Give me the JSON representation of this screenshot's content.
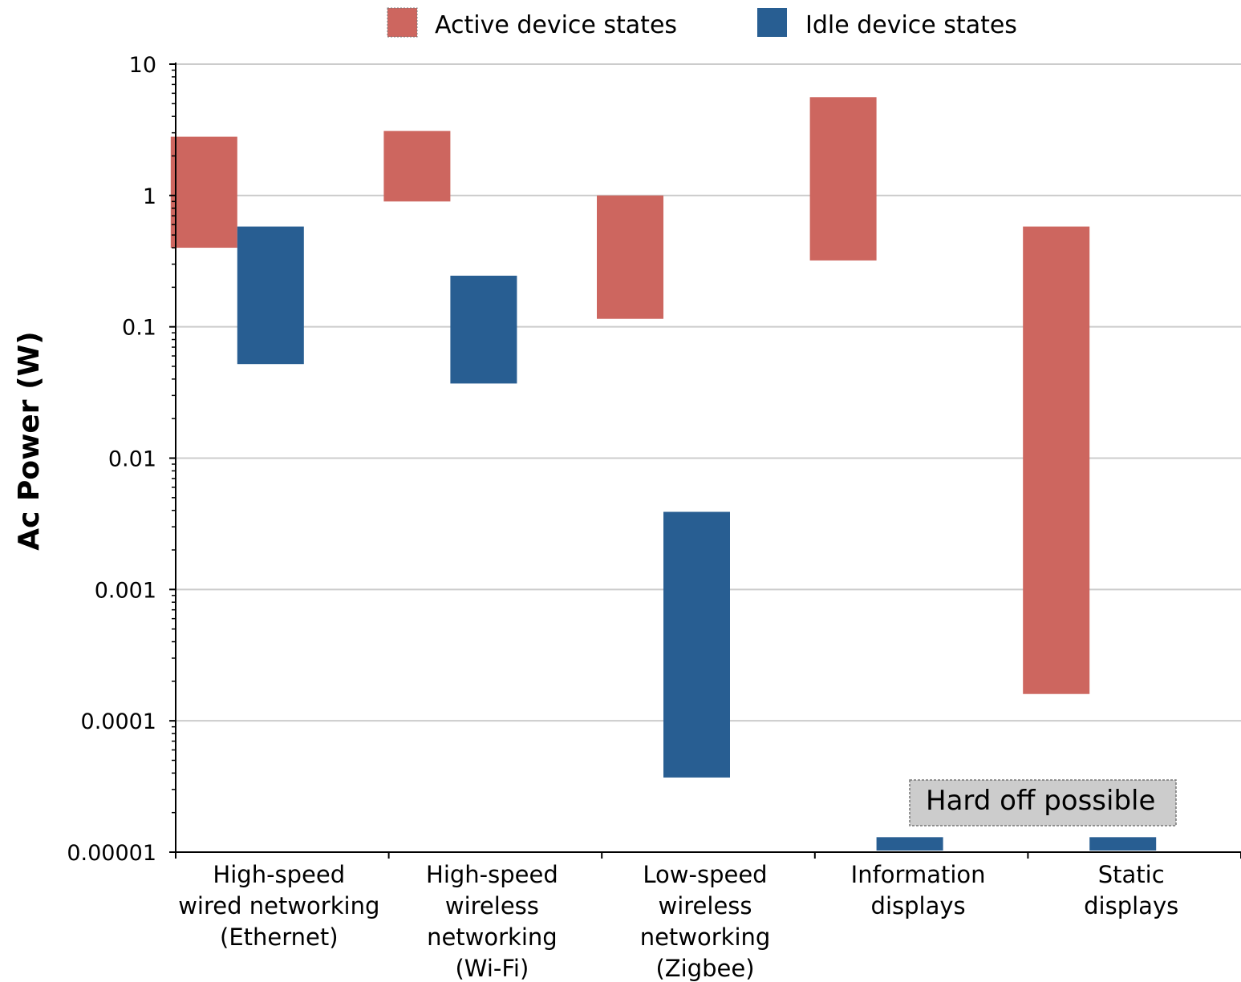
{
  "chart_data": {
    "type": "floating-bar",
    "title": "",
    "xlabel": "",
    "ylabel": "Ac Power (W)",
    "yscale": "log",
    "ylim": [
      1e-05,
      10
    ],
    "yticks": [
      {
        "value": 10,
        "label": "10"
      },
      {
        "value": 1,
        "label": "1"
      },
      {
        "value": 0.1,
        "label": "0.1"
      },
      {
        "value": 0.01,
        "label": "0.01"
      },
      {
        "value": 0.001,
        "label": "0.001"
      },
      {
        "value": 0.0001,
        "label": "0.0001"
      },
      {
        "value": 1e-05,
        "label": "0.00001"
      }
    ],
    "grid": "horizontal",
    "legend_position": "top",
    "categories": [
      [
        "High-speed",
        "wired networking",
        "(Ethernet)"
      ],
      [
        "High-speed",
        "wireless",
        "networking",
        "(Wi-Fi)"
      ],
      [
        "Low-speed",
        "wireless",
        "networking",
        "(Zigbee)"
      ],
      [
        "Information",
        "displays"
      ],
      [
        "Static",
        "displays"
      ]
    ],
    "series": [
      {
        "name": "Active device states",
        "color": "#cd665f",
        "ranges": [
          [
            0.4,
            2.8
          ],
          [
            0.9,
            3.1
          ],
          [
            0.115,
            1.0
          ],
          [
            0.32,
            5.6
          ],
          [
            0.00016,
            0.58
          ]
        ]
      },
      {
        "name": "Idle device states",
        "color": "#285e92",
        "ranges": [
          [
            0.052,
            0.58
          ],
          [
            0.037,
            0.245
          ],
          [
            3.7e-05,
            0.0039
          ],
          [
            1e-05,
            1.3e-05
          ],
          [
            1e-05,
            1.3e-05
          ]
        ]
      }
    ],
    "annotation": {
      "text": "Hard off possible",
      "fill": "#cccccc"
    }
  }
}
